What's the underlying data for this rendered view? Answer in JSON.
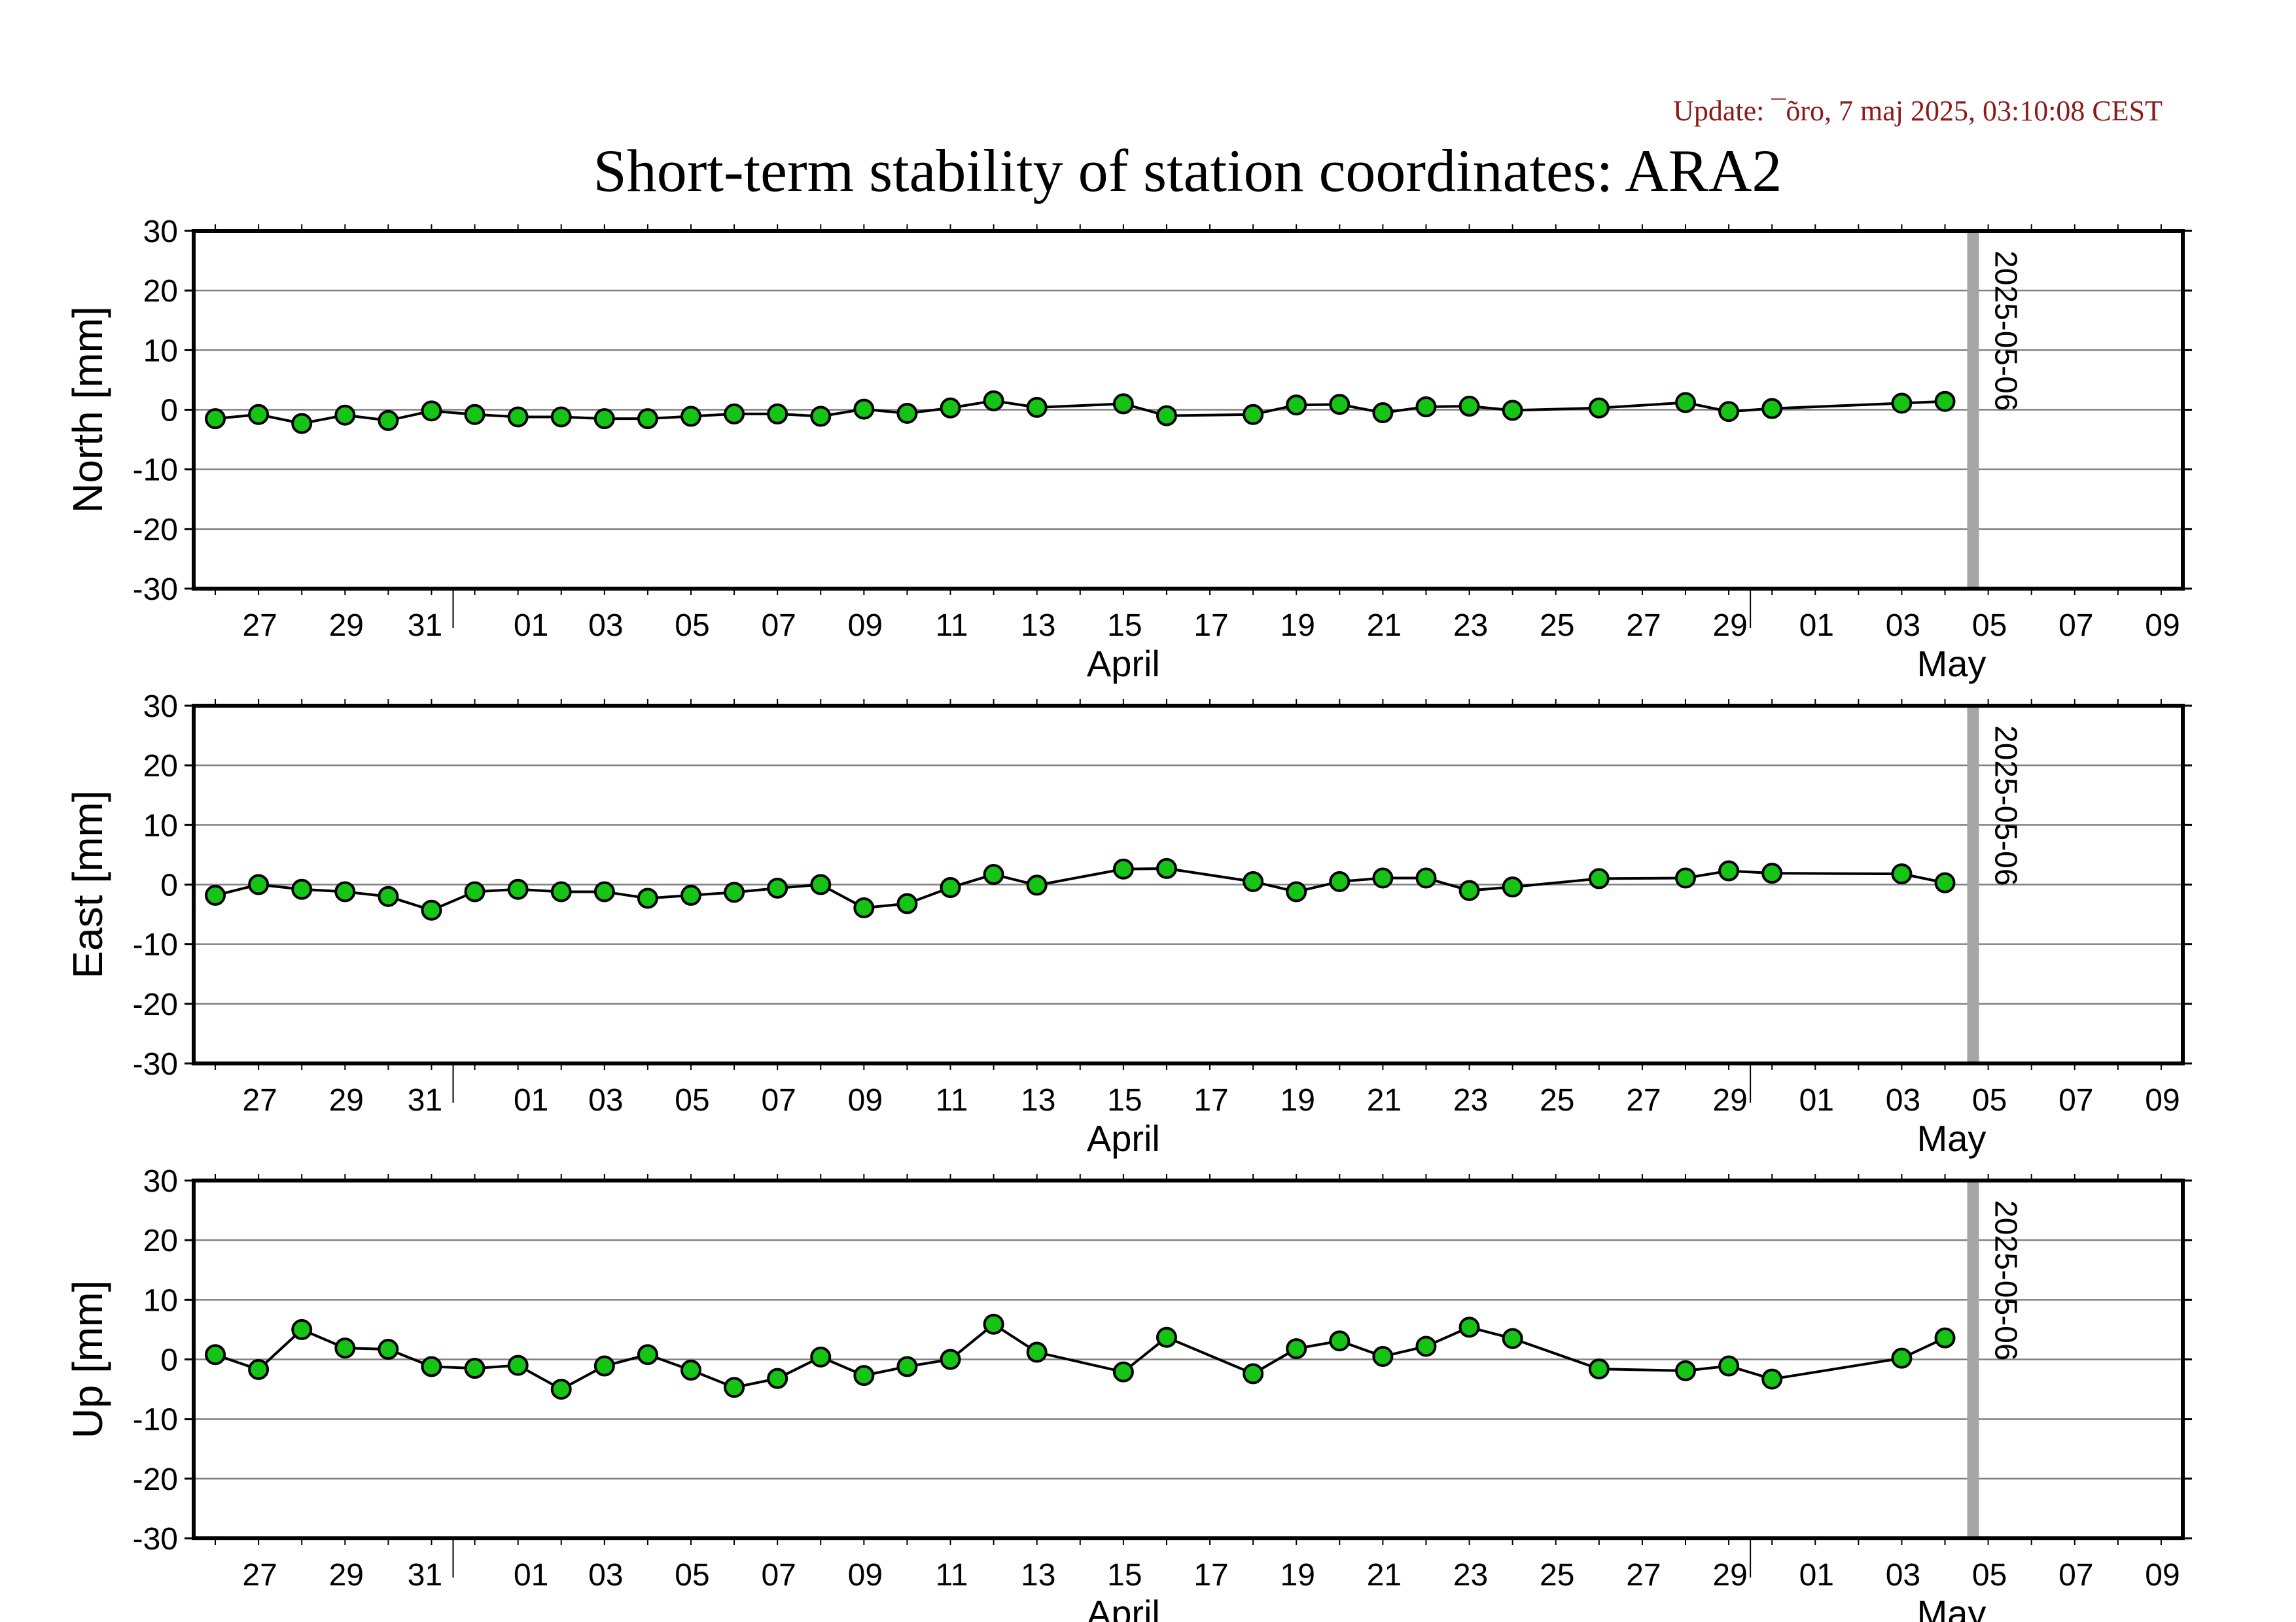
{
  "update_text": "Update: ¯õro, 7 maj 2025, 03:10:08 CEST",
  "title": "Short-term stability of station coordinates: ARA2",
  "colors": {
    "marker_fill": "#16c416",
    "marker_stroke": "#000000",
    "line": "#000000",
    "grid": "#808080",
    "today_line": "#a6a6a6",
    "update_text": "#8b1a1a"
  },
  "chart_data": [
    {
      "type": "line",
      "ylabel": "North [mm]",
      "ylim": [
        -30,
        30
      ],
      "yticks": [
        30,
        20,
        10,
        0,
        -10,
        -20,
        -30
      ],
      "xlim": [
        "2025-03-25",
        "2025-05-10"
      ],
      "x_tick_labels": [
        "27",
        "29",
        "31",
        "01",
        "03",
        "05",
        "07",
        "09",
        "11",
        "13",
        "15",
        "17",
        "19",
        "21",
        "23",
        "25",
        "27",
        "29",
        "01",
        "03",
        "05",
        "07",
        "09"
      ],
      "month_labels": [
        "April",
        "May"
      ],
      "marker_line_label": "2025-05-06",
      "grid": true,
      "x": [
        "2025-03-26",
        "2025-03-27",
        "2025-03-28",
        "2025-03-29",
        "2025-03-30",
        "2025-03-31",
        "2025-04-01",
        "2025-04-02",
        "2025-04-03",
        "2025-04-04",
        "2025-04-05",
        "2025-04-06",
        "2025-04-07",
        "2025-04-08",
        "2025-04-09",
        "2025-04-10",
        "2025-04-11",
        "2025-04-12",
        "2025-04-13",
        "2025-04-14",
        "2025-04-16",
        "2025-04-17",
        "2025-04-19",
        "2025-04-20",
        "2025-04-21",
        "2025-04-22",
        "2025-04-23",
        "2025-04-24",
        "2025-04-25",
        "2025-04-27",
        "2025-04-29",
        "2025-04-30",
        "2025-05-01",
        "2025-05-04",
        "2025-05-05"
      ],
      "y": [
        -1.5,
        -0.8,
        -2.3,
        -0.9,
        -1.8,
        -0.2,
        -0.8,
        -1.2,
        -1.2,
        -1.5,
        -1.5,
        -1.1,
        -0.7,
        -0.7,
        -1.1,
        0.1,
        -0.6,
        0.3,
        1.5,
        0.4,
        1.0,
        -1.0,
        -0.8,
        0.8,
        0.9,
        -0.5,
        0.5,
        0.6,
        -0.1,
        0.3,
        1.2,
        -0.3,
        0.2,
        1.1,
        1.4
      ]
    },
    {
      "type": "line",
      "ylabel": "East [mm]",
      "ylim": [
        -30,
        30
      ],
      "yticks": [
        30,
        20,
        10,
        0,
        -10,
        -20,
        -30
      ],
      "xlim": [
        "2025-03-25",
        "2025-05-10"
      ],
      "x_tick_labels": [
        "27",
        "29",
        "31",
        "01",
        "03",
        "05",
        "07",
        "09",
        "11",
        "13",
        "15",
        "17",
        "19",
        "21",
        "23",
        "25",
        "27",
        "29",
        "01",
        "03",
        "05",
        "07",
        "09"
      ],
      "month_labels": [
        "April",
        "May"
      ],
      "marker_line_label": "2025-05-06",
      "grid": true,
      "x": [
        "2025-03-26",
        "2025-03-27",
        "2025-03-28",
        "2025-03-29",
        "2025-03-30",
        "2025-03-31",
        "2025-04-01",
        "2025-04-02",
        "2025-04-03",
        "2025-04-04",
        "2025-04-05",
        "2025-04-06",
        "2025-04-07",
        "2025-04-08",
        "2025-04-09",
        "2025-04-10",
        "2025-04-11",
        "2025-04-12",
        "2025-04-13",
        "2025-04-14",
        "2025-04-16",
        "2025-04-17",
        "2025-04-19",
        "2025-04-20",
        "2025-04-21",
        "2025-04-22",
        "2025-04-23",
        "2025-04-24",
        "2025-04-25",
        "2025-04-27",
        "2025-04-29",
        "2025-04-30",
        "2025-05-01",
        "2025-05-04",
        "2025-05-05"
      ],
      "y": [
        -1.8,
        0.0,
        -0.8,
        -1.2,
        -2.0,
        -4.3,
        -1.2,
        -0.8,
        -1.2,
        -1.2,
        -2.3,
        -1.8,
        -1.3,
        -0.6,
        0.0,
        -3.9,
        -3.2,
        -0.5,
        1.7,
        -0.1,
        2.6,
        2.7,
        0.5,
        -1.2,
        0.5,
        1.1,
        1.1,
        -1.0,
        -0.4,
        1.0,
        1.1,
        2.3,
        1.9,
        1.8,
        0.3
      ]
    },
    {
      "type": "line",
      "ylabel": "Up [mm]",
      "ylim": [
        -30,
        30
      ],
      "yticks": [
        30,
        20,
        10,
        0,
        -10,
        -20,
        -30
      ],
      "xlim": [
        "2025-03-25",
        "2025-05-10"
      ],
      "x_tick_labels": [
        "27",
        "29",
        "31",
        "01",
        "03",
        "05",
        "07",
        "09",
        "11",
        "13",
        "15",
        "17",
        "19",
        "21",
        "23",
        "25",
        "27",
        "29",
        "01",
        "03",
        "05",
        "07",
        "09"
      ],
      "month_labels": [
        "April",
        "May"
      ],
      "marker_line_label": "2025-05-06",
      "grid": true,
      "x": [
        "2025-03-26",
        "2025-03-27",
        "2025-03-28",
        "2025-03-29",
        "2025-03-30",
        "2025-03-31",
        "2025-04-01",
        "2025-04-02",
        "2025-04-03",
        "2025-04-04",
        "2025-04-05",
        "2025-04-06",
        "2025-04-07",
        "2025-04-08",
        "2025-04-09",
        "2025-04-10",
        "2025-04-11",
        "2025-04-12",
        "2025-04-13",
        "2025-04-14",
        "2025-04-16",
        "2025-04-17",
        "2025-04-19",
        "2025-04-20",
        "2025-04-21",
        "2025-04-22",
        "2025-04-23",
        "2025-04-24",
        "2025-04-25",
        "2025-04-27",
        "2025-04-29",
        "2025-04-30",
        "2025-05-01",
        "2025-05-04",
        "2025-05-05"
      ],
      "y": [
        0.8,
        -1.7,
        5.0,
        1.9,
        1.7,
        -1.2,
        -1.5,
        -1.0,
        -5.0,
        -1.1,
        0.8,
        -1.8,
        -4.7,
        -3.2,
        0.4,
        -2.7,
        -1.2,
        0.0,
        5.9,
        1.2,
        -2.1,
        3.7,
        -2.4,
        1.8,
        3.1,
        0.5,
        2.2,
        5.4,
        3.5,
        -1.6,
        -1.9,
        -1.1,
        -3.3,
        0.2,
        3.6
      ]
    }
  ]
}
